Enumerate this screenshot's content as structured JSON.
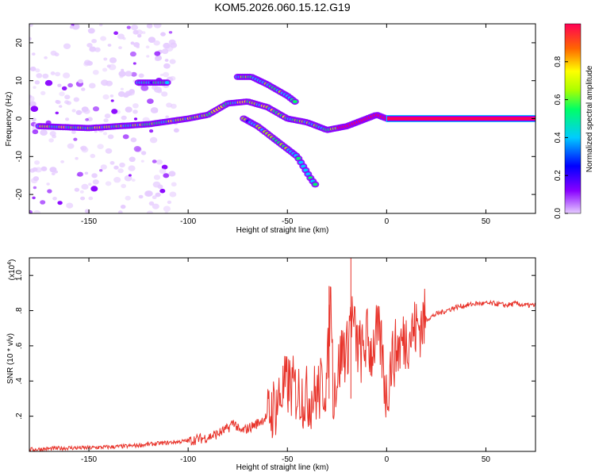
{
  "title": "KOM5.2026.060.15.12.G19",
  "chart_data": [
    {
      "type": "heatmap",
      "xlabel": "Height of straight line (km)",
      "ylabel": "Frequency (Hz)",
      "xlim": [
        -180,
        75
      ],
      "ylim": [
        -25,
        25
      ],
      "x_ticks": [
        -150,
        -100,
        -50,
        0,
        50
      ],
      "y_ticks": [
        -20,
        -10,
        0,
        10,
        20
      ],
      "colorbar": {
        "label": "Normalized spectral amplitude",
        "range": [
          0,
          1
        ],
        "ticks": [
          0.0,
          0.2,
          0.4,
          0.6,
          0.8
        ],
        "colors": [
          "#e6ccff",
          "#8800ff",
          "#0000ff",
          "#00ccff",
          "#00ff66",
          "#aaff00",
          "#ffff00",
          "#ff6600",
          "#ff0055"
        ]
      },
      "ridges": [
        {
          "name": "main",
          "points": [
            [
              -175,
              -2
            ],
            [
              -150,
              -2.5
            ],
            [
              -120,
              -1.5
            ],
            [
              -100,
              0
            ],
            [
              -90,
              1
            ],
            [
              -80,
              4
            ],
            [
              -70,
              4.5
            ],
            [
              -60,
              3
            ],
            [
              -50,
              0
            ],
            [
              -40,
              -1
            ],
            [
              -30,
              -3
            ],
            [
              -20,
              -2
            ],
            [
              -10,
              0
            ],
            [
              -5,
              1
            ],
            [
              0,
              0
            ],
            [
              20,
              0
            ],
            [
              75,
              0
            ]
          ]
        },
        {
          "name": "upper",
          "points": [
            [
              -125,
              9.5
            ],
            [
              -110,
              9.5
            ]
          ]
        },
        {
          "name": "upper2",
          "points": [
            [
              -75,
              11
            ],
            [
              -68,
              11
            ],
            [
              -60,
              9
            ],
            [
              -50,
              6
            ],
            [
              -45,
              4
            ]
          ]
        },
        {
          "name": "lower",
          "points": [
            [
              -72,
              0
            ],
            [
              -65,
              -2
            ],
            [
              -55,
              -6
            ],
            [
              -45,
              -10
            ],
            [
              -38,
              -16
            ],
            [
              -35,
              -18
            ]
          ]
        }
      ]
    },
    {
      "type": "line",
      "xlabel": "Height of straight line (km)",
      "ylabel": "SNR (10 * v/v)",
      "y_multiplier": "(x10",
      "y_multiplier_exp": "4",
      "y_multiplier_close": ")",
      "xlim": [
        -180,
        75
      ],
      "ylim": [
        0,
        1.1
      ],
      "x_ticks": [
        -150,
        -100,
        -50,
        0,
        50
      ],
      "y_ticks": [
        0.2,
        0.4,
        0.6,
        0.8,
        1.0
      ],
      "series": [
        {
          "color": "#e8332a",
          "x": [
            -180,
            -170,
            -160,
            -150,
            -140,
            -130,
            -120,
            -110,
            -100,
            -90,
            -85,
            -80,
            -77,
            -74,
            -70,
            -65,
            -60,
            -55,
            -52,
            -50,
            -45,
            -40,
            -35,
            -30,
            -28,
            -27,
            -25,
            -22,
            -20,
            -18,
            -15,
            -12,
            -10,
            -8,
            -5,
            -3,
            0,
            2,
            5,
            8,
            10,
            15,
            20,
            25,
            30,
            35,
            40,
            45,
            50,
            55,
            60,
            65,
            70,
            75
          ],
          "y": [
            0.01,
            0.015,
            0.02,
            0.02,
            0.025,
            0.03,
            0.04,
            0.05,
            0.06,
            0.08,
            0.1,
            0.13,
            0.17,
            0.11,
            0.13,
            0.16,
            0.2,
            0.28,
            0.35,
            0.38,
            0.34,
            0.3,
            0.33,
            0.4,
            0.94,
            0.35,
            0.42,
            0.6,
            0.55,
            0.8,
            0.6,
            0.55,
            0.65,
            0.56,
            0.66,
            0.62,
            0.3,
            0.5,
            0.58,
            0.62,
            0.65,
            0.7,
            0.75,
            0.78,
            0.8,
            0.82,
            0.83,
            0.84,
            0.84,
            0.84,
            0.83,
            0.84,
            0.83,
            0.83
          ]
        }
      ],
      "spikes": [
        [
          -29,
          0.94
        ],
        [
          -18,
          1.1
        ]
      ]
    }
  ]
}
